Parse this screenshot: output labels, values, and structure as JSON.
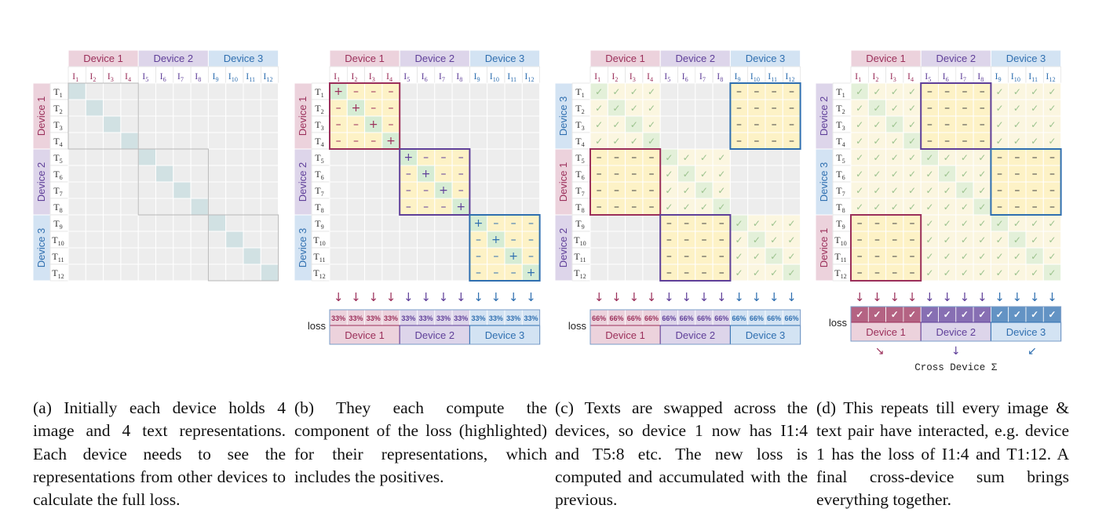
{
  "devices": [
    {
      "label": "Device 1",
      "color": "#9b2f5a",
      "header_bg": "#ecd2dc"
    },
    {
      "label": "Device 2",
      "color": "#5f3f99",
      "header_bg": "#ddd5ea"
    },
    {
      "label": "Device 3",
      "color": "#2f6fb0",
      "header_bg": "#d3e3f3"
    }
  ],
  "image_labels": [
    "I1",
    "I2",
    "I3",
    "I4",
    "I5",
    "I6",
    "I7",
    "I8",
    "I9",
    "I10",
    "I11",
    "I12"
  ],
  "text_labels": [
    "T1",
    "T2",
    "T3",
    "T4",
    "T5",
    "T6",
    "T7",
    "T8",
    "T9",
    "T10",
    "T11",
    "T12"
  ],
  "panels": [
    {
      "id": "a",
      "row_groups": [
        "Device 1",
        "Device 2",
        "Device 3"
      ],
      "text_order": [
        1,
        2,
        3,
        4,
        5,
        6,
        7,
        8,
        9,
        10,
        11,
        12
      ]
    },
    {
      "id": "b",
      "row_groups": [
        "Device 1",
        "Device 2",
        "Device 3"
      ],
      "text_order": [
        1,
        2,
        3,
        4,
        5,
        6,
        7,
        8,
        9,
        10,
        11,
        12
      ],
      "loss_label": "loss",
      "loss_value": "33%"
    },
    {
      "id": "c",
      "row_groups": [
        "Device 3",
        "Device 1",
        "Device 2"
      ],
      "text_order": [
        1,
        2,
        3,
        4,
        5,
        6,
        7,
        8,
        9,
        10,
        11,
        12
      ],
      "loss_label": "loss",
      "loss_value": "66%"
    },
    {
      "id": "d",
      "row_groups": [
        "Device 2",
        "Device 3",
        "Device 1"
      ],
      "text_order": [
        1,
        2,
        3,
        4,
        5,
        6,
        7,
        8,
        9,
        10,
        11,
        12
      ],
      "loss_label": "loss",
      "loss_value": "✓",
      "sum_label": "Cross Device Σ"
    }
  ],
  "symbols": {
    "positive": "+",
    "negative": "–",
    "done": "✓",
    "arrow": "↓"
  },
  "captions": {
    "a": "(a) Initially each device holds 4 image and 4 text representations. Each device needs to see the representations from other devices to calculate the full loss.",
    "b": "(b) They each compute the component of the loss (highlighted) for their representations, which includes the positives.",
    "c": "(c) Texts are swapped across the devices, so device 1 now has I1:4 and T5:8 etc. The new loss is computed and accumulated with the previous.",
    "d": "(d) This repeats till every image & text pair have interacted, e.g. device 1 has the loss of I1:4 and T1:12. A final cross-device sum brings everything together."
  }
}
